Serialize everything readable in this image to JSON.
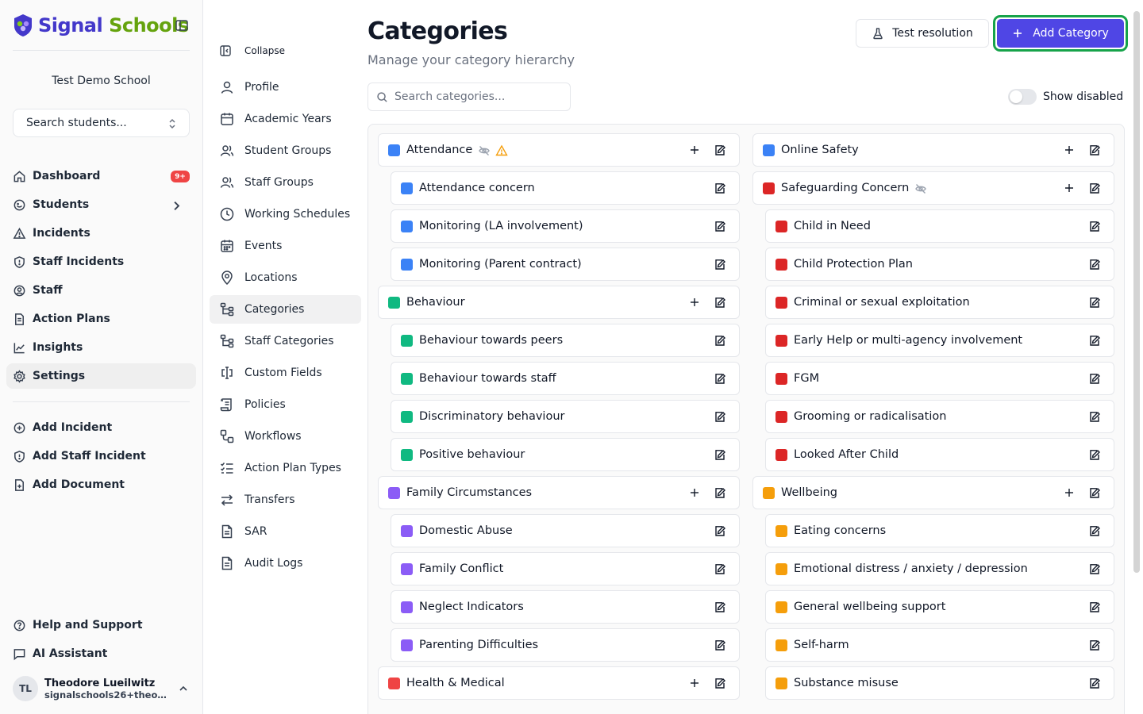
{
  "brand": {
    "word1": "Signal",
    "word2": "Schools"
  },
  "sidebar": {
    "school_name": "Test Demo School",
    "student_search_placeholder": "Search students...",
    "nav": [
      {
        "label": "Dashboard",
        "icon": "home-icon",
        "badge": "9+"
      },
      {
        "label": "Students",
        "icon": "students-icon"
      },
      {
        "label": "Incidents",
        "icon": "warning-icon"
      },
      {
        "label": "Staff Incidents",
        "icon": "shield-icon"
      },
      {
        "label": "Staff",
        "icon": "user-circle-icon"
      },
      {
        "label": "Action Plans",
        "icon": "document-icon"
      },
      {
        "label": "Insights",
        "icon": "chart-line-icon"
      },
      {
        "label": "Settings",
        "icon": "gear-icon",
        "active": true
      }
    ],
    "quick_actions": [
      {
        "label": "Add Incident",
        "icon": "plus-circle-icon"
      },
      {
        "label": "Add Staff Incident",
        "icon": "shield-icon"
      },
      {
        "label": "Add Document",
        "icon": "file-plus-icon"
      }
    ],
    "footer": [
      {
        "label": "Help and Support",
        "icon": "help-icon"
      },
      {
        "label": "AI Assistant",
        "icon": "chat-icon"
      }
    ],
    "user": {
      "initials": "TL",
      "name": "Theodore Lueilwitz",
      "email": "signalschools26+theodo..."
    }
  },
  "settings_nav": {
    "collapse_label": "Collapse",
    "items": [
      {
        "label": "Profile",
        "icon": "user-icon"
      },
      {
        "label": "Academic Years",
        "icon": "calendar-icon"
      },
      {
        "label": "Student Groups",
        "icon": "users-icon"
      },
      {
        "label": "Staff Groups",
        "icon": "users-icon"
      },
      {
        "label": "Working Schedules",
        "icon": "clock-icon"
      },
      {
        "label": "Events",
        "icon": "calendar-grid-icon"
      },
      {
        "label": "Locations",
        "icon": "map-pin-icon"
      },
      {
        "label": "Categories",
        "icon": "hierarchy-icon",
        "active": true
      },
      {
        "label": "Staff Categories",
        "icon": "hierarchy-icon"
      },
      {
        "label": "Custom Fields",
        "icon": "text-cursor-icon"
      },
      {
        "label": "Policies",
        "icon": "scroll-icon"
      },
      {
        "label": "Workflows",
        "icon": "workflow-icon"
      },
      {
        "label": "Action Plan Types",
        "icon": "list-todo-icon"
      },
      {
        "label": "Transfers",
        "icon": "arrows-icon"
      },
      {
        "label": "SAR",
        "icon": "file-text-icon"
      },
      {
        "label": "Audit Logs",
        "icon": "file-text-icon"
      }
    ]
  },
  "main": {
    "title": "Categories",
    "subtitle": "Manage your category hierarchy",
    "test_button": "Test resolution",
    "add_button": "Add Category",
    "search_placeholder": "Search categories...",
    "show_disabled_label": "Show disabled",
    "colors": {
      "blue": "#3b82f6",
      "red": "#dc2626",
      "green": "#10b981",
      "purple": "#8b5cf6",
      "orange": "#f59e0b",
      "health": "#ef4444",
      "accent": "#4f46e5",
      "focus": "#16a34a"
    },
    "left_column": [
      {
        "label": "Attendance",
        "color": "blue",
        "parent": true,
        "hidden_icon": true,
        "warning_icon": true
      },
      {
        "label": "Attendance concern",
        "color": "blue"
      },
      {
        "label": "Monitoring (LA involvement)",
        "color": "blue"
      },
      {
        "label": "Monitoring (Parent contract)",
        "color": "blue"
      },
      {
        "label": "Behaviour",
        "color": "green",
        "parent": true
      },
      {
        "label": "Behaviour towards peers",
        "color": "green"
      },
      {
        "label": "Behaviour towards staff",
        "color": "green"
      },
      {
        "label": "Discriminatory behaviour",
        "color": "green"
      },
      {
        "label": "Positive behaviour",
        "color": "green"
      },
      {
        "label": "Family Circumstances",
        "color": "purple",
        "parent": true
      },
      {
        "label": "Domestic Abuse",
        "color": "purple"
      },
      {
        "label": "Family Conflict",
        "color": "purple"
      },
      {
        "label": "Neglect Indicators",
        "color": "purple"
      },
      {
        "label": "Parenting Difficulties",
        "color": "purple"
      },
      {
        "label": "Health & Medical",
        "color": "health",
        "parent": true
      }
    ],
    "right_column": [
      {
        "label": "Online Safety",
        "color": "blue",
        "parent": true
      },
      {
        "label": "Safeguarding Concern",
        "color": "red",
        "parent": true,
        "hidden_icon": true
      },
      {
        "label": "Child in Need",
        "color": "red"
      },
      {
        "label": "Child Protection Plan",
        "color": "red"
      },
      {
        "label": "Criminal or sexual exploitation",
        "color": "red"
      },
      {
        "label": "Early Help or multi-agency involvement",
        "color": "red"
      },
      {
        "label": "FGM",
        "color": "red"
      },
      {
        "label": "Grooming or radicalisation",
        "color": "red"
      },
      {
        "label": "Looked After Child",
        "color": "red"
      },
      {
        "label": "Wellbeing",
        "color": "orange",
        "parent": true
      },
      {
        "label": "Eating concerns",
        "color": "orange"
      },
      {
        "label": "Emotional distress / anxiety / depression",
        "color": "orange"
      },
      {
        "label": "General wellbeing support",
        "color": "orange"
      },
      {
        "label": "Self-harm",
        "color": "orange"
      },
      {
        "label": "Substance misuse",
        "color": "orange"
      }
    ]
  }
}
